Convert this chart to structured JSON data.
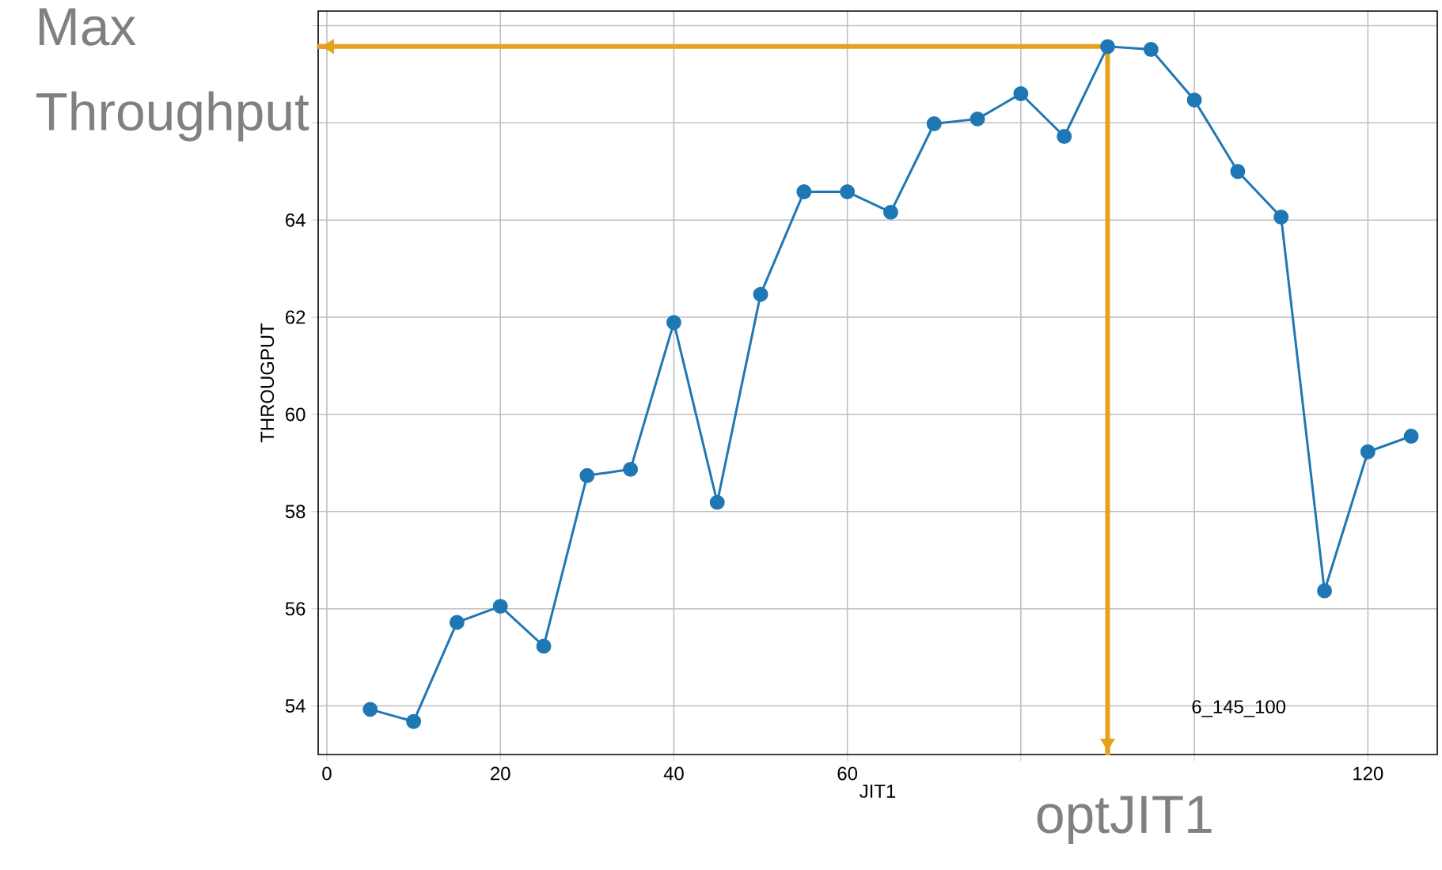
{
  "chart_data": {
    "type": "line",
    "xlabel": "JIT1",
    "ylabel": "THROUGPUT",
    "x": [
      5,
      10,
      15,
      20,
      25,
      30,
      35,
      40,
      45,
      50,
      55,
      60,
      65,
      70,
      75,
      80,
      85,
      90,
      95,
      100,
      105,
      110,
      115,
      120,
      125
    ],
    "series": [
      {
        "color": "#1f77b4",
        "values": [
          53.93,
          53.68,
          55.72,
          56.05,
          55.23,
          58.74,
          58.87,
          61.89,
          58.19,
          62.47,
          64.58,
          64.58,
          64.16,
          65.98,
          66.08,
          66.6,
          65.72,
          67.57,
          67.51,
          66.47,
          65.0,
          64.06,
          56.37,
          59.23,
          59.55
        ]
      }
    ],
    "xlim": [
      -1,
      128
    ],
    "ylim": [
      53.0,
      68.3
    ],
    "xticks": [
      0,
      20,
      40,
      60,
      {
        "value": 80,
        "label": null
      },
      {
        "value": 100,
        "label": null
      },
      120
    ],
    "yticks": [
      54,
      56,
      58,
      60,
      62,
      64,
      {
        "value": 66,
        "label": null
      },
      {
        "value": 68,
        "label": null
      }
    ],
    "grid": true,
    "marker": "circle",
    "line_style": "solid",
    "ref_lines": [
      {
        "axis": "y",
        "value": 67.57,
        "label": "Max Throughput",
        "color": "#e6a11f"
      },
      {
        "axis": "x",
        "value": 90,
        "label": "optJIT1",
        "color": "#e6a11f"
      }
    ],
    "annotations": [
      "6_145_100"
    ]
  }
}
